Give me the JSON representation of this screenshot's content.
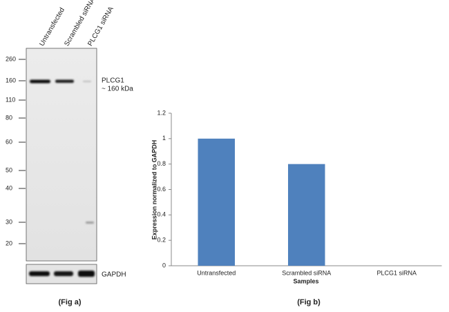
{
  "blot": {
    "lanes": [
      "Untransfected",
      "Scrambled siRNA",
      "PLCG1 siRNA"
    ],
    "markers": [
      "260",
      "160",
      "110",
      "80",
      "60",
      "50",
      "40",
      "30",
      "20"
    ],
    "band_label": "PLCG1",
    "band_size": "~ 160 kDa",
    "loading_control": "GAPDH",
    "caption": "(Fig a)"
  },
  "chart_data": {
    "type": "bar",
    "caption": "(Fig b)",
    "x_label": "Samples",
    "y_label": "Expression  normalized to GAPDH",
    "categories": [
      "Untransfected",
      "Scrambled siRNA",
      "PLCG1 siRNA"
    ],
    "values": [
      1,
      0.8,
      0
    ],
    "color": "#4f81bd",
    "ylim": [
      0,
      1.2
    ],
    "yticks": [
      0,
      0.2,
      0.4,
      0.6,
      0.8,
      1,
      1.2
    ],
    "grid": false
  }
}
